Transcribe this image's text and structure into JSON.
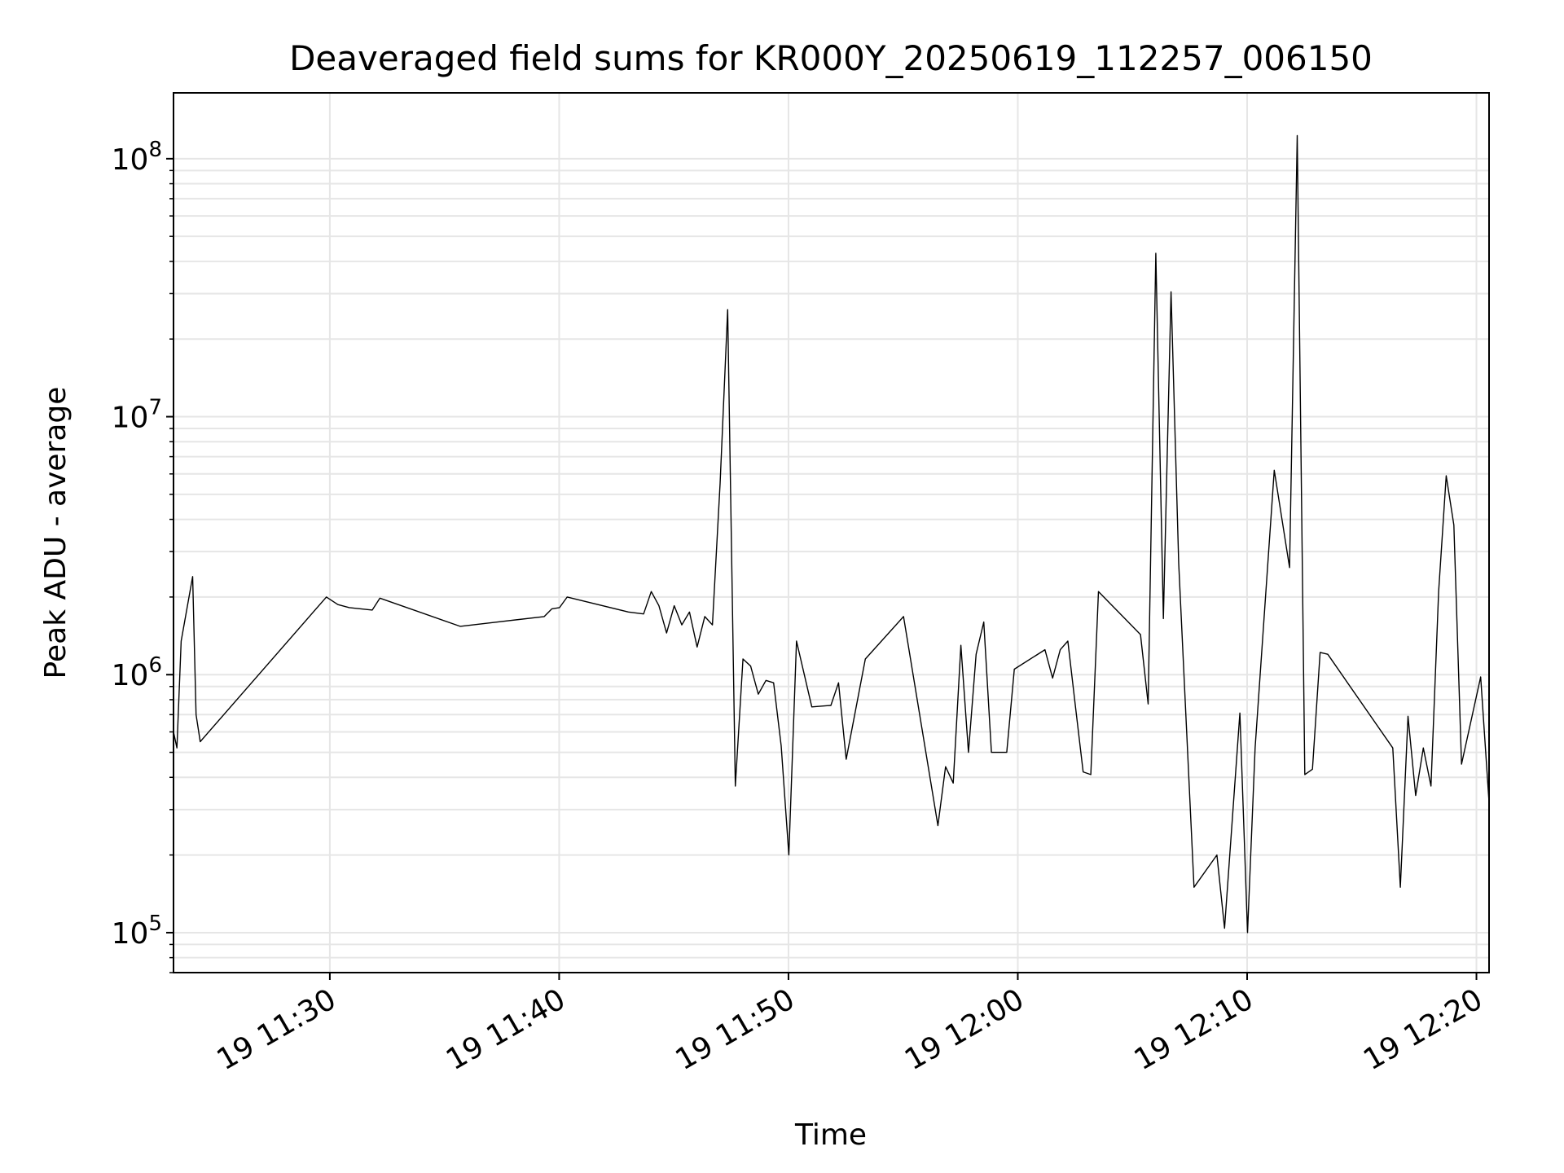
{
  "chart_data": {
    "type": "line",
    "title": "Deaveraged field sums for KR000Y_20250619_112257_006150",
    "xlabel": "Time",
    "ylabel": "Peak ADU - average",
    "xlim": [
      "2025-06-19 11:23:11",
      "2025-06-19 12:20:33"
    ],
    "ylim": [
      70000,
      180000000
    ],
    "yscale": "log",
    "grid": true,
    "line_color": "#000000",
    "grid_color": "#e6e6e6",
    "x_ticks": [
      {
        "value": "2025-06-19 11:30:00",
        "label": "19 11:30"
      },
      {
        "value": "2025-06-19 11:40:00",
        "label": "19 11:40"
      },
      {
        "value": "2025-06-19 11:50:00",
        "label": "19 11:50"
      },
      {
        "value": "2025-06-19 12:00:00",
        "label": "19 12:00"
      },
      {
        "value": "2025-06-19 12:10:00",
        "label": "19 12:10"
      },
      {
        "value": "2025-06-19 12:20:00",
        "label": "19 12:20"
      }
    ],
    "y_ticks": [
      {
        "value": 100000,
        "base": "10",
        "exp": "5"
      },
      {
        "value": 1000000,
        "base": "10",
        "exp": "6"
      },
      {
        "value": 10000000,
        "base": "10",
        "exp": "7"
      },
      {
        "value": 100000000,
        "base": "10",
        "exp": "8"
      }
    ],
    "series": [
      {
        "x": [
          "2025-06-19 11:23:11",
          "2025-06-19 11:23:20",
          "2025-06-19 11:23:31",
          "2025-06-19 11:24:01",
          "2025-06-19 11:24:10",
          "2025-06-19 11:24:21",
          "2025-06-19 11:29:51",
          "2025-06-19 11:30:21",
          "2025-06-19 11:30:51",
          "2025-06-19 11:31:51",
          "2025-06-19 11:32:11",
          "2025-06-19 11:35:41",
          "2025-06-19 11:39:21",
          "2025-06-19 11:39:41",
          "2025-06-19 11:40:01",
          "2025-06-19 11:40:21",
          "2025-06-19 11:43:01",
          "2025-06-19 11:43:41",
          "2025-06-19 11:44:01",
          "2025-06-19 11:44:21",
          "2025-06-19 11:44:41",
          "2025-06-19 11:45:01",
          "2025-06-19 11:45:21",
          "2025-06-19 11:45:41",
          "2025-06-19 11:46:01",
          "2025-06-19 11:46:21",
          "2025-06-19 11:46:41",
          "2025-06-19 11:47:01",
          "2025-06-19 11:47:21",
          "2025-06-19 11:47:41",
          "2025-06-19 11:48:01",
          "2025-06-19 11:48:21",
          "2025-06-19 11:48:41",
          "2025-06-19 11:49:01",
          "2025-06-19 11:49:21",
          "2025-06-19 11:49:41",
          "2025-06-19 11:50:01",
          "2025-06-19 11:50:21",
          "2025-06-19 11:51:01",
          "2025-06-19 11:51:51",
          "2025-06-19 11:52:11",
          "2025-06-19 11:52:31",
          "2025-06-19 11:53:21",
          "2025-06-19 11:55:01",
          "2025-06-19 11:56:31",
          "2025-06-19 11:56:51",
          "2025-06-19 11:57:11",
          "2025-06-19 11:57:31",
          "2025-06-19 11:57:51",
          "2025-06-19 11:58:11",
          "2025-06-19 11:58:31",
          "2025-06-19 11:58:51",
          "2025-06-19 11:59:31",
          "2025-06-19 11:59:51",
          "2025-06-19 12:01:11",
          "2025-06-19 12:01:31",
          "2025-06-19 12:01:51",
          "2025-06-19 12:02:11",
          "2025-06-19 12:02:31",
          "2025-06-19 12:02:51",
          "2025-06-19 12:03:11",
          "2025-06-19 12:03:31",
          "2025-06-19 12:05:21",
          "2025-06-19 12:05:41",
          "2025-06-19 12:06:01",
          "2025-06-19 12:06:21",
          "2025-06-19 12:06:41",
          "2025-06-19 12:07:01",
          "2025-06-19 12:07:41",
          "2025-06-19 12:08:41",
          "2025-06-19 12:09:01",
          "2025-06-19 12:09:41",
          "2025-06-19 12:10:01",
          "2025-06-19 12:10:21",
          "2025-06-19 12:11:11",
          "2025-06-19 12:11:51",
          "2025-06-19 12:12:11",
          "2025-06-19 12:12:31",
          "2025-06-19 12:12:51",
          "2025-06-19 12:13:11",
          "2025-06-19 12:13:31",
          "2025-06-19 12:16:21",
          "2025-06-19 12:16:41",
          "2025-06-19 12:17:01",
          "2025-06-19 12:17:21",
          "2025-06-19 12:17:41",
          "2025-06-19 12:18:01",
          "2025-06-19 12:18:21",
          "2025-06-19 12:18:41",
          "2025-06-19 12:19:01",
          "2025-06-19 12:19:21",
          "2025-06-19 12:20:11",
          "2025-06-19 12:20:33"
        ],
        "values": [
          600000,
          520000,
          1350000,
          2400000,
          700000,
          550000,
          2000000,
          1870000,
          1820000,
          1780000,
          1980000,
          1540000,
          1680000,
          1800000,
          1820000,
          2000000,
          1750000,
          1720000,
          2100000,
          1850000,
          1450000,
          1850000,
          1560000,
          1750000,
          1280000,
          1680000,
          1560000,
          5500000,
          26000000,
          370000,
          1150000,
          1080000,
          840000,
          950000,
          930000,
          530000,
          200000,
          1350000,
          750000,
          760000,
          930000,
          470000,
          1150000,
          1680000,
          260000,
          440000,
          380000,
          1300000,
          500000,
          1200000,
          1600000,
          500000,
          500000,
          1050000,
          1250000,
          970000,
          1250000,
          1350000,
          750000,
          420000,
          410000,
          2100000,
          1430000,
          770000,
          43000000,
          1650000,
          30500000,
          2700000,
          150000,
          200000,
          104000,
          710000,
          100000,
          520000,
          6200000,
          2600000,
          123000000,
          410000,
          430000,
          1220000,
          1200000,
          520000,
          150000,
          690000,
          340000,
          520000,
          370000,
          2100000,
          5900000,
          3800000,
          450000,
          980000,
          320000
        ]
      }
    ]
  }
}
